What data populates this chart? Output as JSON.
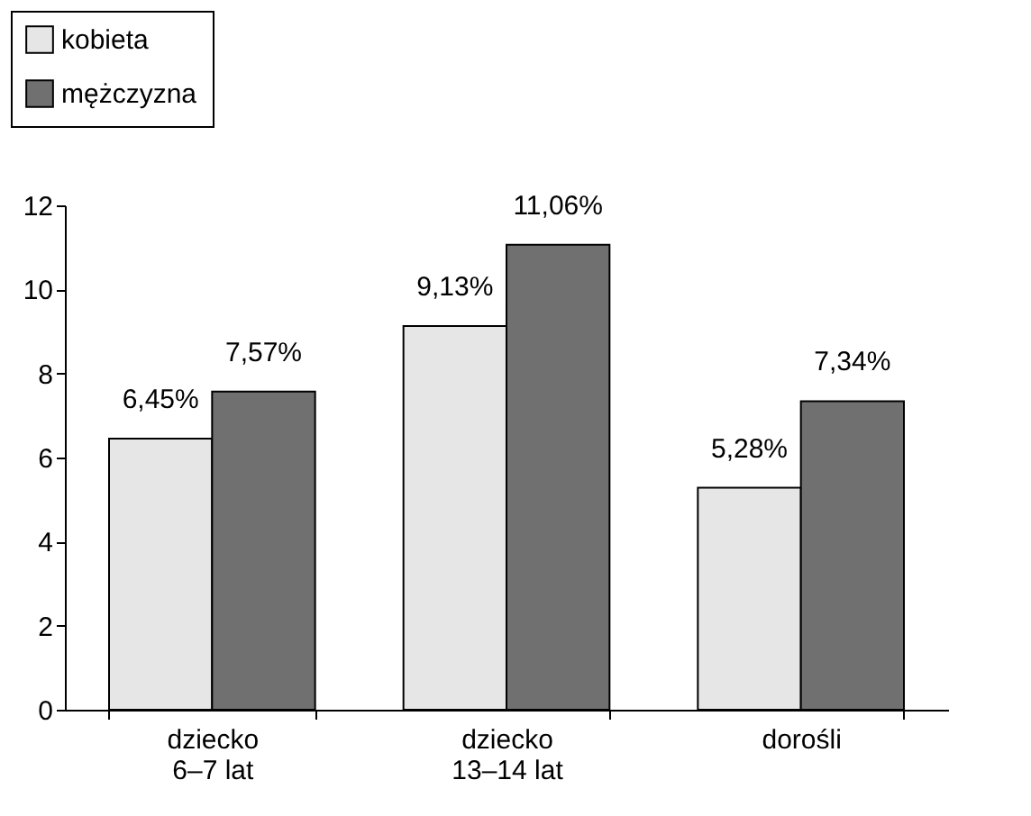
{
  "chart_data": {
    "type": "bar",
    "categories": [
      "dziecko\n6–7 lat",
      "dziecko\n13–14 lat",
      "dorośli"
    ],
    "series": [
      {
        "name": "kobieta",
        "color": "#e6e6e6",
        "values": [
          6.45,
          9.13,
          5.28
        ],
        "value_labels": [
          "6,45%",
          "9,13%",
          "5,28%"
        ]
      },
      {
        "name": "mężczyzna",
        "color": "#707070",
        "values": [
          7.57,
          11.06,
          7.34
        ],
        "value_labels": [
          "7,57%",
          "11,06%",
          "7,34%"
        ]
      }
    ],
    "ylim": [
      0,
      12
    ],
    "yticks": [
      0,
      2,
      4,
      6,
      8,
      10,
      12
    ],
    "grid": false,
    "legend": "top left"
  }
}
